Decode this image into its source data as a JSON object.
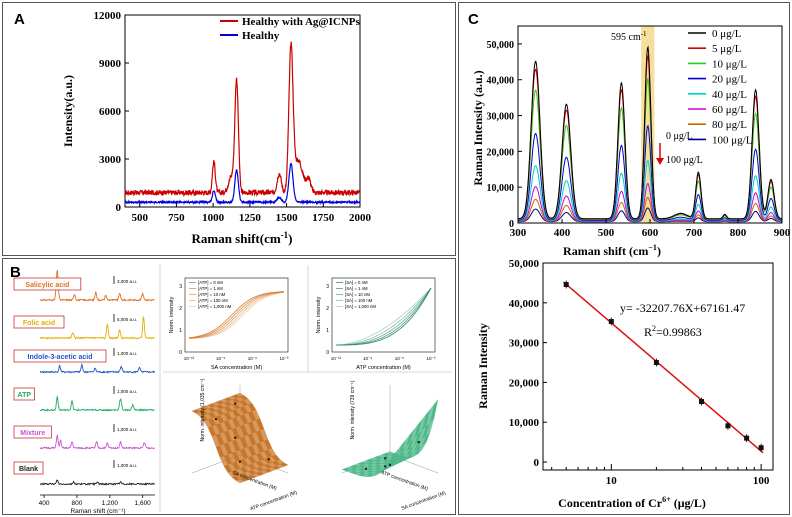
{
  "panels": {
    "A": "A",
    "B": "B",
    "C": "C"
  },
  "chart_data": [
    {
      "id": "A",
      "type": "line",
      "title": "",
      "xlabel": "Raman shift(cm",
      "xlabel_sup": "-1",
      "xlabel_end": ")",
      "ylabel": "Intensity(a.u.)",
      "xlim": [
        400,
        2000
      ],
      "ylim": [
        0,
        12000
      ],
      "xticks": [
        500,
        750,
        1000,
        1250,
        1500,
        1750,
        2000
      ],
      "yticks": [
        0,
        3000,
        6000,
        9000,
        12000
      ],
      "legend_position": "top-right",
      "series": [
        {
          "name": "Healthy with Ag@ICNPs",
          "color": "#cc0000",
          "baseline": 900,
          "peaks": [
            {
              "x": 1005,
              "h": 1900,
              "w": 10
            },
            {
              "x": 1160,
              "h": 6900,
              "w": 12
            },
            {
              "x": 1125,
              "h": 1000,
              "w": 20
            },
            {
              "x": 1450,
              "h": 1200,
              "w": 14
            },
            {
              "x": 1530,
              "h": 8900,
              "w": 14
            },
            {
              "x": 1580,
              "h": 2000,
              "w": 30
            },
            {
              "x": 1650,
              "h": 800,
              "w": 15
            }
          ]
        },
        {
          "name": "Healthy",
          "color": "#0000dd",
          "baseline": 300,
          "peaks": [
            {
              "x": 1005,
              "h": 700,
              "w": 10
            },
            {
              "x": 1160,
              "h": 2000,
              "w": 12
            },
            {
              "x": 1530,
              "h": 2400,
              "w": 14
            },
            {
              "x": 1450,
              "h": 300,
              "w": 14
            }
          ]
        }
      ]
    },
    {
      "id": "C-top",
      "type": "line",
      "xlabel": "Raman shift (cm",
      "xlabel_sup": "−1",
      "xlabel_end": ")",
      "ylabel": "Raman Intensity (a.u.)",
      "xlim": [
        300,
        900
      ],
      "ylim": [
        0,
        55000
      ],
      "xticks": [
        300,
        400,
        500,
        600,
        700,
        800,
        900
      ],
      "yticks": [
        0,
        10000,
        20000,
        30000,
        40000,
        50000
      ],
      "ytick_labels": [
        "0",
        "10,000",
        "20,000",
        "30,000",
        "40,000",
        "50,000"
      ],
      "highlight_band": {
        "x1": 580,
        "x2": 610,
        "label": "595 cm",
        "label_sup": "-1"
      },
      "arrow_label_top": "0 μg/L",
      "arrow_label_bottom": "100 μg/L",
      "peak_positions": [
        340,
        410,
        535,
        595,
        710,
        840,
        875
      ],
      "series": [
        {
          "name": "0 μg/L",
          "color": "#000000",
          "scale": 1.0
        },
        {
          "name": "5 μg/L",
          "color": "#e00000",
          "scale": 0.95
        },
        {
          "name": "10 μg/L",
          "color": "#22cc22",
          "scale": 0.82
        },
        {
          "name": "20 μg/L",
          "color": "#0000cc",
          "scale": 0.55
        },
        {
          "name": "40 μg/L",
          "color": "#00cccc",
          "scale": 0.35
        },
        {
          "name": "60 μg/L",
          "color": "#cc00cc",
          "scale": 0.22
        },
        {
          "name": "80 μg/L",
          "color": "#cc6600",
          "scale": 0.14
        },
        {
          "name": "100 μg/L",
          "color": "#000088",
          "scale": 0.08
        }
      ],
      "base_heights": [
        44000,
        32000,
        38000,
        48000,
        13000,
        36000,
        11000
      ]
    },
    {
      "id": "C-bottom",
      "type": "scatter",
      "xscale": "log",
      "xlabel": "Concentration of Cr",
      "xlabel_sup": "6+",
      "xlabel_end": " (μg/L)",
      "ylabel": "Raman Intensity",
      "xlim": [
        3.5,
        120
      ],
      "ylim": [
        -2000,
        50000
      ],
      "xticks": [
        10,
        100
      ],
      "yticks": [
        0,
        10000,
        20000,
        30000,
        40000,
        50000
      ],
      "ytick_labels": [
        "0",
        "10,000",
        "20,000",
        "30,000",
        "40,000",
        "50,000"
      ],
      "x": [
        5,
        10,
        20,
        40,
        60,
        80,
        100
      ],
      "y": [
        44600,
        35300,
        25000,
        15200,
        9100,
        6000,
        3600
      ],
      "fit": {
        "slope": -32207.76,
        "intercept": 67161.47
      },
      "equation": "y= -32207.76X+67161.47",
      "r2_label": "R",
      "r2_sup": "2",
      "r2_value": "=0.99863"
    }
  ],
  "panel_b": {
    "spectra": {
      "xlabel": "Raman shift (cm⁻¹)",
      "xticks": [
        "400",
        "800",
        "1,200",
        "1,600"
      ],
      "labels": [
        {
          "name": "Salicylic acid",
          "color": "#e07020",
          "scale": "3,000 a.u."
        },
        {
          "name": "Folic acid",
          "color": "#e0b000",
          "scale": "5,000 a.u."
        },
        {
          "name": "Indole-3-acetic acid",
          "color": "#2255cc",
          "scale": "1,000 a.u."
        },
        {
          "name": "ATP",
          "color": "#22aa66",
          "scale": "1,000 a.u."
        },
        {
          "name": "Mixture",
          "color": "#cc55cc",
          "scale": "1,000 a.u."
        },
        {
          "name": "Blank",
          "color": "#222222",
          "scale": "1,000 a.u."
        }
      ]
    },
    "sub1": {
      "xlabel": "SA concentration (M)",
      "ylabel": "Norm. intensity",
      "legend": [
        "[ATP] = 0 nM",
        "[ATP] = 1 nM",
        "[ATP] = 10 nM",
        "[ATP] = 100 nM",
        "[ATP] = 1,000 nM"
      ],
      "xticks": [
        "10⁻¹²",
        "10⁻⁹",
        "10⁻⁶",
        "10⁻³"
      ],
      "yticks": [
        "0",
        "1",
        "2",
        "3"
      ],
      "color": "#d97a2a"
    },
    "sub2": {
      "xlabel": "ATP concentration (M)",
      "ylabel": "Norm. intensity",
      "legend": [
        "[SA] = 0 nM",
        "[SA] = 1 nM",
        "[SA] = 10 nM",
        "[SA] = 100 nM",
        "[SA] = 1,000 nM"
      ],
      "xticks": [
        "10⁻¹²",
        "10⁻⁹",
        "10⁻⁶",
        "10⁻³"
      ],
      "yticks": [
        "0",
        "1",
        "2",
        "3"
      ],
      "color": "#2e8b6a"
    },
    "sub3": {
      "zlabel": "Norm. intensity (1,035 cm⁻¹)",
      "xlabel": "SA concentration (M)",
      "ylabel": "ATP concentration (M)",
      "color": "#c8762a"
    },
    "sub4": {
      "zlabel": "Norm. intensity (739 cm⁻¹)",
      "xlabel": "ATP concentration (M)",
      "ylabel": "SA concentration (M)",
      "color": "#4fb88a"
    }
  }
}
